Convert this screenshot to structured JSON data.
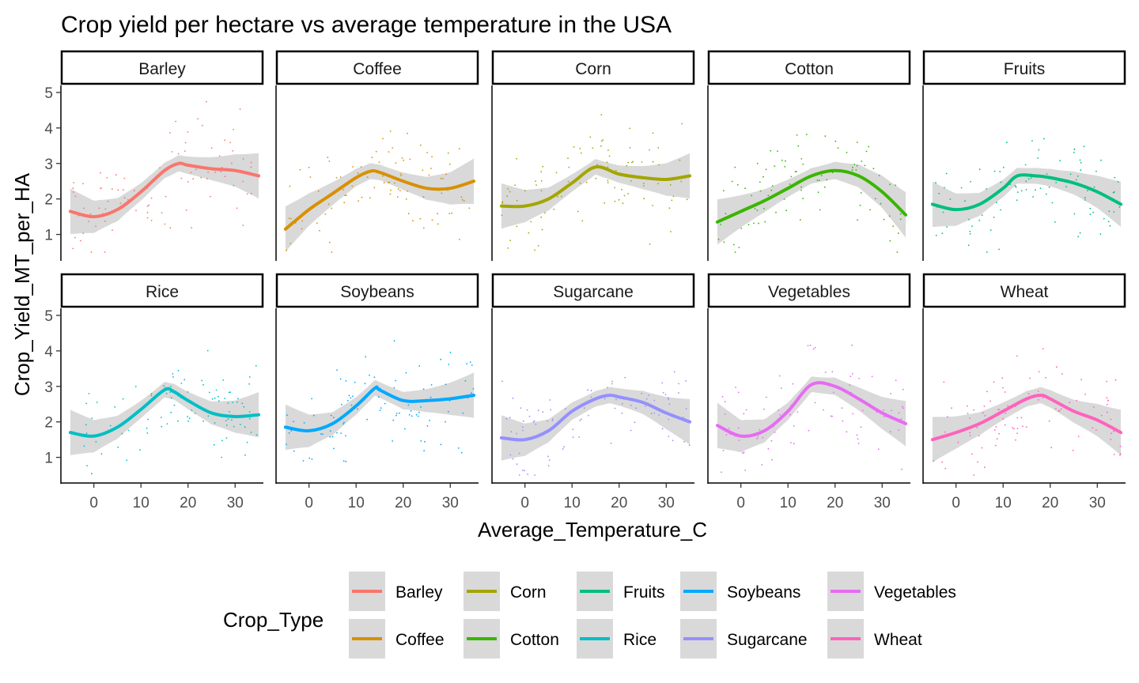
{
  "chart_data": {
    "type": "scatter",
    "title": "Crop yield per hectare vs average temperature in the USA",
    "xlabel": "Average_Temperature_C",
    "ylabel": "Crop_Yield_MT_per_HA",
    "xlim": [
      -7,
      36
    ],
    "ylim": [
      0.3,
      5.2
    ],
    "x_ticks": [
      0,
      10,
      20,
      30
    ],
    "y_ticks": [
      1,
      2,
      3,
      4,
      5
    ],
    "grid": false,
    "legend_title": "Crop_Type",
    "legend_position": "bottom",
    "smooth": "loess with grey confidence band",
    "panels": [
      {
        "name": "Barley",
        "color": "#F8766D",
        "smooth_x": [
          -5,
          0,
          5,
          10,
          15,
          18,
          20,
          25,
          30,
          35
        ],
        "smooth_y": [
          1.65,
          1.5,
          1.7,
          2.2,
          2.8,
          3.0,
          2.95,
          2.85,
          2.8,
          2.65
        ]
      },
      {
        "name": "Coffee",
        "color": "#D89000",
        "smooth_x": [
          -5,
          0,
          5,
          10,
          13,
          15,
          20,
          25,
          30,
          35
        ],
        "smooth_y": [
          1.15,
          1.7,
          2.15,
          2.6,
          2.78,
          2.75,
          2.5,
          2.3,
          2.3,
          2.5
        ]
      },
      {
        "name": "Corn",
        "color": "#A3A500",
        "smooth_x": [
          -5,
          0,
          5,
          10,
          15,
          20,
          25,
          30,
          35
        ],
        "smooth_y": [
          1.8,
          1.8,
          2.0,
          2.45,
          2.9,
          2.7,
          2.6,
          2.55,
          2.65
        ]
      },
      {
        "name": "Cotton",
        "color": "#39B600",
        "smooth_x": [
          -5,
          0,
          5,
          10,
          15,
          20,
          25,
          30,
          35
        ],
        "smooth_y": [
          1.35,
          1.65,
          1.95,
          2.3,
          2.65,
          2.8,
          2.65,
          2.2,
          1.55
        ]
      },
      {
        "name": "Fruits",
        "color": "#00BF7D",
        "smooth_x": [
          -5,
          0,
          5,
          10,
          13,
          17,
          20,
          25,
          30,
          35
        ],
        "smooth_y": [
          1.85,
          1.7,
          1.85,
          2.3,
          2.65,
          2.65,
          2.6,
          2.45,
          2.2,
          1.85
        ]
      },
      {
        "name": "Rice",
        "color": "#00BFC4",
        "smooth_x": [
          -5,
          0,
          5,
          10,
          15,
          17,
          20,
          25,
          30,
          35
        ],
        "smooth_y": [
          1.7,
          1.6,
          1.85,
          2.35,
          2.9,
          2.85,
          2.6,
          2.25,
          2.15,
          2.2
        ]
      },
      {
        "name": "Soybeans",
        "color": "#00A9FF",
        "smooth_x": [
          -5,
          0,
          5,
          10,
          14,
          15,
          20,
          25,
          30,
          35
        ],
        "smooth_y": [
          1.85,
          1.75,
          1.95,
          2.45,
          2.95,
          2.9,
          2.6,
          2.6,
          2.65,
          2.75
        ]
      },
      {
        "name": "Sugarcane",
        "color": "#9590FF",
        "smooth_x": [
          -5,
          0,
          5,
          10,
          15,
          18,
          20,
          25,
          30,
          35
        ],
        "smooth_y": [
          1.55,
          1.5,
          1.75,
          2.3,
          2.65,
          2.75,
          2.7,
          2.55,
          2.25,
          2.0
        ]
      },
      {
        "name": "Vegetables",
        "color": "#E76BF3",
        "smooth_x": [
          -5,
          0,
          5,
          10,
          15,
          20,
          25,
          30,
          35
        ],
        "smooth_y": [
          1.9,
          1.6,
          1.75,
          2.3,
          3.05,
          3.0,
          2.65,
          2.25,
          1.95
        ]
      },
      {
        "name": "Wheat",
        "color": "#FF62BC",
        "smooth_x": [
          -5,
          0,
          5,
          10,
          15,
          18,
          20,
          25,
          30,
          35
        ],
        "smooth_y": [
          1.5,
          1.7,
          1.95,
          2.3,
          2.65,
          2.75,
          2.65,
          2.3,
          2.05,
          1.7
        ]
      }
    ],
    "legend": {
      "items": [
        {
          "label": "Barley",
          "color": "#F8766D"
        },
        {
          "label": "Coffee",
          "color": "#D89000"
        },
        {
          "label": "Corn",
          "color": "#A3A500"
        },
        {
          "label": "Cotton",
          "color": "#39B600"
        },
        {
          "label": "Fruits",
          "color": "#00BF7D"
        },
        {
          "label": "Rice",
          "color": "#00BFC4"
        },
        {
          "label": "Soybeans",
          "color": "#00A9FF"
        },
        {
          "label": "Sugarcane",
          "color": "#9590FF"
        },
        {
          "label": "Vegetables",
          "color": "#E76BF3"
        },
        {
          "label": "Wheat",
          "color": "#FF62BC"
        }
      ]
    }
  }
}
